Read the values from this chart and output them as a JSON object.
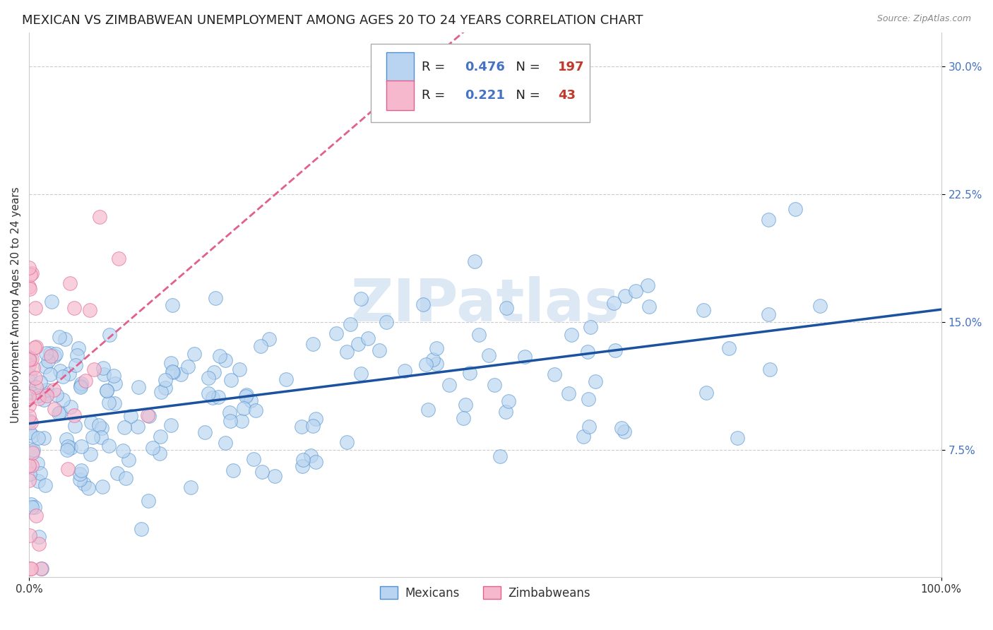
{
  "title": "MEXICAN VS ZIMBABWEAN UNEMPLOYMENT AMONG AGES 20 TO 24 YEARS CORRELATION CHART",
  "source": "Source: ZipAtlas.com",
  "ylabel": "Unemployment Among Ages 20 to 24 years",
  "xlim": [
    0.0,
    1.0
  ],
  "ylim": [
    0.0,
    0.32
  ],
  "ytick_labels": [
    "7.5%",
    "15.0%",
    "22.5%",
    "30.0%"
  ],
  "ytick_positions": [
    0.075,
    0.15,
    0.225,
    0.3
  ],
  "xtick_positions": [
    0.0,
    1.0
  ],
  "xtick_labels": [
    "0.0%",
    "100.0%"
  ],
  "mexican_color": "#b8d4f0",
  "mexican_edge_color": "#5090d0",
  "mexican_line_color": "#1a52a0",
  "zimbabwean_color": "#f5b8cc",
  "zimbabwean_edge_color": "#e06090",
  "zimbabwean_line_color": "#e06090",
  "background_color": "#ffffff",
  "grid_color": "#cccccc",
  "watermark_color": "#dde8f5",
  "legend_R_mexican": "0.476",
  "legend_N_mexican": "197",
  "legend_R_zimbabwean": "0.221",
  "legend_N_zimbabwean": "43",
  "random_seed": 42,
  "title_fontsize": 13,
  "axis_label_fontsize": 11,
  "tick_fontsize": 11,
  "legend_fontsize": 13
}
